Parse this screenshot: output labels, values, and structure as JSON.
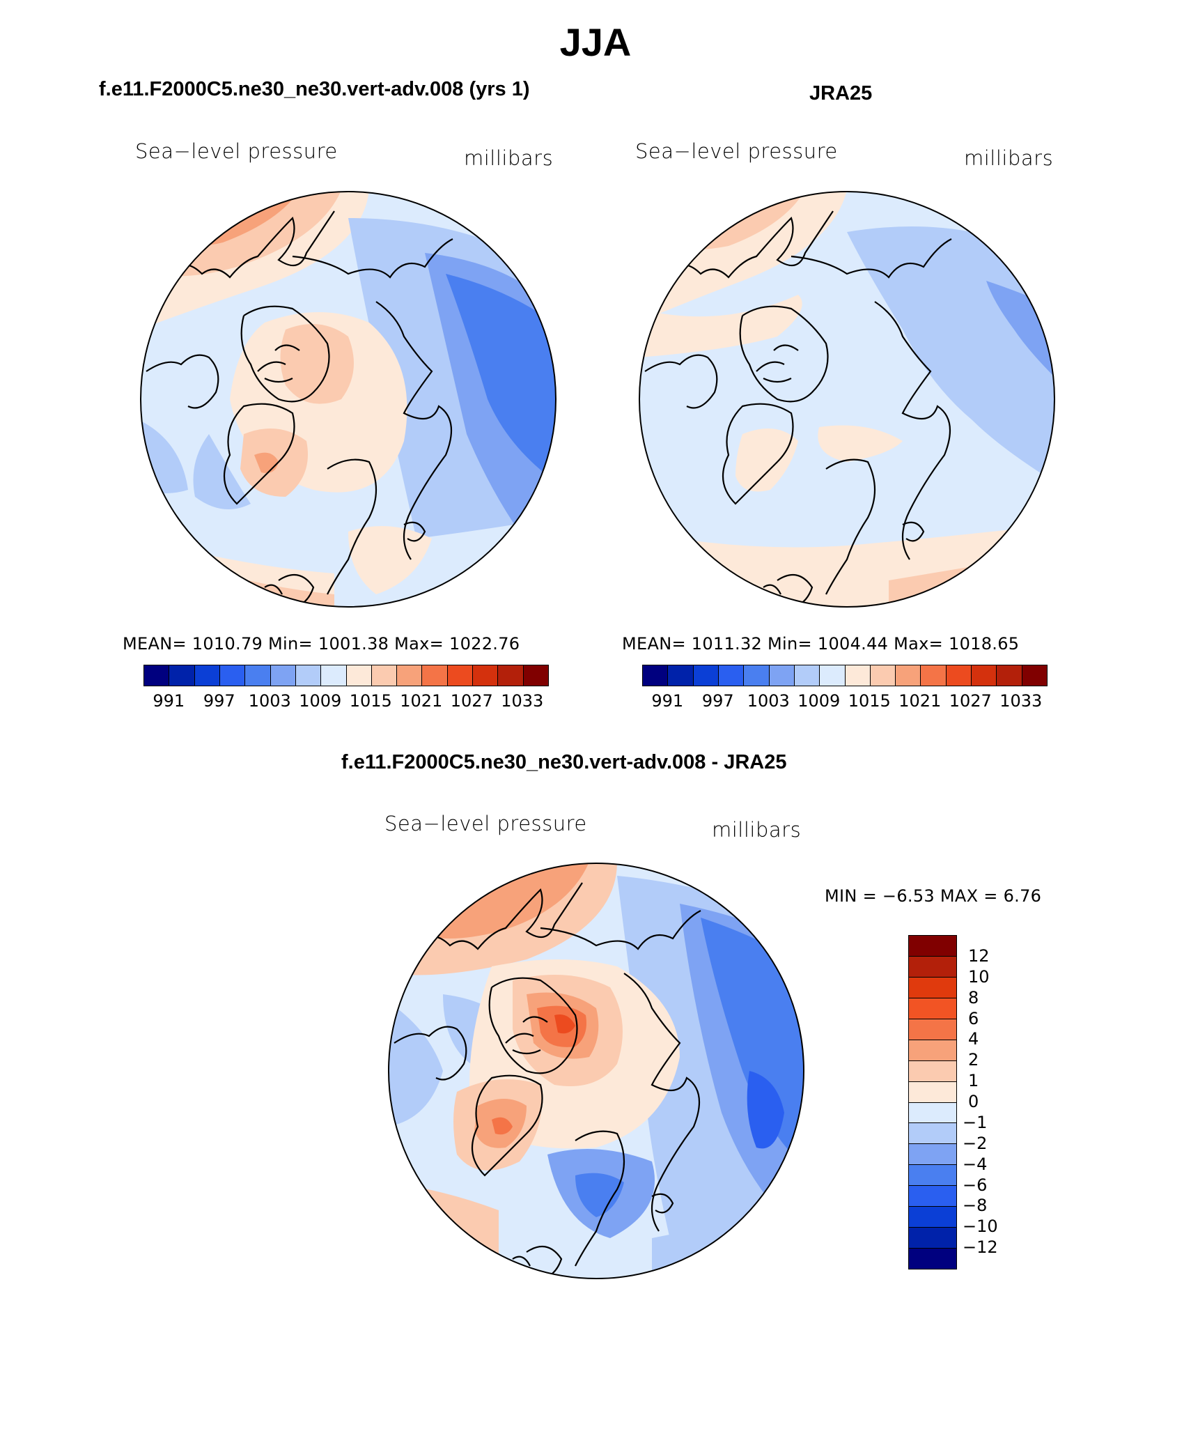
{
  "figure": {
    "title": "JJA",
    "diff_title": "f.e11.F2000C5.ne30_ne30.vert-adv.008 - JRA25"
  },
  "panels": [
    {
      "title": "f.e11.F2000C5.ne30_ne30.vert-adv.008 (yrs 1)",
      "variable": "Sea−level pressure",
      "units": "millibars",
      "stats": "MEAN=  1010.79   Min=  1001.38   Max=  1022.76"
    },
    {
      "title": "JRA25",
      "variable": "Sea−level pressure",
      "units": "millibars",
      "stats": "MEAN=  1011.32   Min=  1004.44   Max=  1018.65"
    },
    {
      "variable": "Sea−level pressure",
      "units": "millibars",
      "stats": "MIN =   −6.53  MAX =     6.76"
    }
  ],
  "colorbar_abs": {
    "colors": [
      "#00007f",
      "#0022aa",
      "#0b3fd6",
      "#2a5ff0",
      "#4a7ff0",
      "#7ea3f3",
      "#b2ccf9",
      "#dcebfd",
      "#fde9d9",
      "#fbcbb0",
      "#f7a27a",
      "#f47447",
      "#ec4b1f",
      "#d4310d",
      "#b3200a",
      "#800000"
    ],
    "labels": [
      "991",
      "997",
      "1003",
      "1009",
      "1015",
      "1021",
      "1027",
      "1033"
    ]
  },
  "colorbar_diff": {
    "colors": [
      "#800000",
      "#b3200a",
      "#e03a0d",
      "#f25424",
      "#f47447",
      "#f7a27a",
      "#fbcbb0",
      "#fde9d9",
      "#dcebfd",
      "#b2ccf9",
      "#7ea3f3",
      "#4a7ff0",
      "#2a5ff0",
      "#0b3fd6",
      "#0022aa",
      "#00007f"
    ],
    "labels": [
      "12",
      "10",
      "8",
      "6",
      "4",
      "2",
      "1",
      "0",
      "−1",
      "−2",
      "−4",
      "−6",
      "−8",
      "−10",
      "−12"
    ]
  },
  "map_colors": {
    "ocean_base_1": "#dcebfd",
    "ocean_base_2": "#dcebfd",
    "ocean_base_3": "#b2ccf9"
  }
}
